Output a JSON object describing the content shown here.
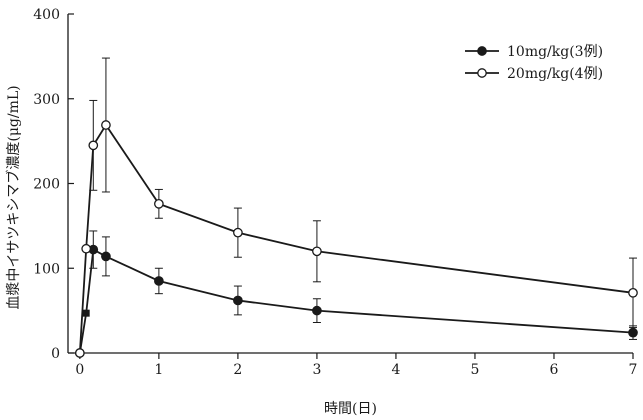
{
  "chart_data": {
    "type": "line",
    "title": "",
    "xlabel": "時間(日)",
    "ylabel": "血漿中イサツキシマブ濃度(μg/mL)",
    "xlim": [
      -0.15,
      7
    ],
    "ylim": [
      0,
      400
    ],
    "x_ticks": [
      0,
      1,
      2,
      3,
      4,
      5,
      6,
      7
    ],
    "y_ticks": [
      0,
      100,
      200,
      300,
      400
    ],
    "grid": false,
    "legend_position": "top-right",
    "series": [
      {
        "name": "10mg/kg(3例)",
        "marker": "filled-circle",
        "color": "#1a1a1a",
        "x": [
          0,
          0.08,
          0.17,
          0.33,
          1,
          2,
          3,
          7
        ],
        "y": [
          0,
          47,
          122,
          114,
          85,
          62,
          50,
          24
        ],
        "err": [
          0,
          0,
          22,
          23,
          15,
          17,
          14,
          8
        ]
      },
      {
        "name": "20mg/kg(4例)",
        "marker": "open-circle",
        "color": "#1a1a1a",
        "x": [
          0,
          0.08,
          0.17,
          0.33,
          1,
          2,
          3,
          7
        ],
        "y": [
          0,
          123,
          245,
          269,
          176,
          142,
          120,
          71
        ],
        "err": [
          0,
          0,
          53,
          79,
          17,
          29,
          36,
          41
        ]
      }
    ]
  }
}
